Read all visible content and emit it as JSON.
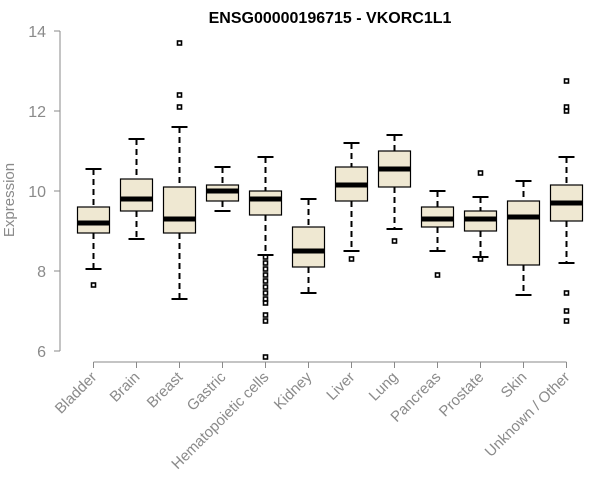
{
  "chart_data": {
    "type": "boxplot",
    "title": "ENSG00000196715 - VKORC1L1",
    "xlabel": "",
    "ylabel": "Expression",
    "ylim": [
      5.9,
      14.2
    ],
    "yticks": [
      6,
      8,
      10,
      12,
      14
    ],
    "box_fill": "#efe8d2",
    "categories": [
      "Bladder",
      "Brain",
      "Breast",
      "Gastric",
      "Hematopoietic cells",
      "Kidney",
      "Liver",
      "Lung",
      "Pancreas",
      "Prostate",
      "Skin",
      "Unknown / Other"
    ],
    "boxes": [
      {
        "min": 8.05,
        "q1": 8.95,
        "median": 9.2,
        "q3": 9.6,
        "max": 10.55,
        "outliers": [
          7.65
        ]
      },
      {
        "min": 8.8,
        "q1": 9.5,
        "median": 9.8,
        "q3": 10.3,
        "max": 11.3,
        "outliers": []
      },
      {
        "min": 7.3,
        "q1": 8.95,
        "median": 9.3,
        "q3": 10.1,
        "max": 11.6,
        "outliers": [
          12.1,
          12.4,
          13.7
        ]
      },
      {
        "min": 9.5,
        "q1": 9.75,
        "median": 10.0,
        "q3": 10.15,
        "max": 10.6,
        "outliers": []
      },
      {
        "min": 8.4,
        "q1": 9.4,
        "median": 9.8,
        "q3": 10.0,
        "max": 10.85,
        "outliers": [
          8.35,
          8.2,
          8.05,
          7.9,
          7.75,
          7.6,
          7.45,
          7.3,
          7.2,
          6.9,
          6.75,
          5.85
        ]
      },
      {
        "min": 7.45,
        "q1": 8.1,
        "median": 8.5,
        "q3": 9.1,
        "max": 9.8,
        "outliers": []
      },
      {
        "min": 8.5,
        "q1": 9.75,
        "median": 10.15,
        "q3": 10.6,
        "max": 11.2,
        "outliers": [
          8.3
        ]
      },
      {
        "min": 9.05,
        "q1": 10.1,
        "median": 10.55,
        "q3": 11.0,
        "max": 11.4,
        "outliers": [
          8.75
        ]
      },
      {
        "min": 8.5,
        "q1": 9.1,
        "median": 9.3,
        "q3": 9.6,
        "max": 10.0,
        "outliers": [
          7.9
        ]
      },
      {
        "min": 8.35,
        "q1": 9.0,
        "median": 9.3,
        "q3": 9.5,
        "max": 9.85,
        "outliers": [
          10.45,
          8.3
        ]
      },
      {
        "min": 7.4,
        "q1": 8.15,
        "median": 9.35,
        "q3": 9.75,
        "max": 10.25,
        "outliers": []
      },
      {
        "min": 8.2,
        "q1": 9.25,
        "median": 9.7,
        "q3": 10.15,
        "max": 10.85,
        "outliers": [
          12.75,
          12.1,
          12.0,
          7.45,
          7.0,
          6.75
        ]
      }
    ]
  }
}
